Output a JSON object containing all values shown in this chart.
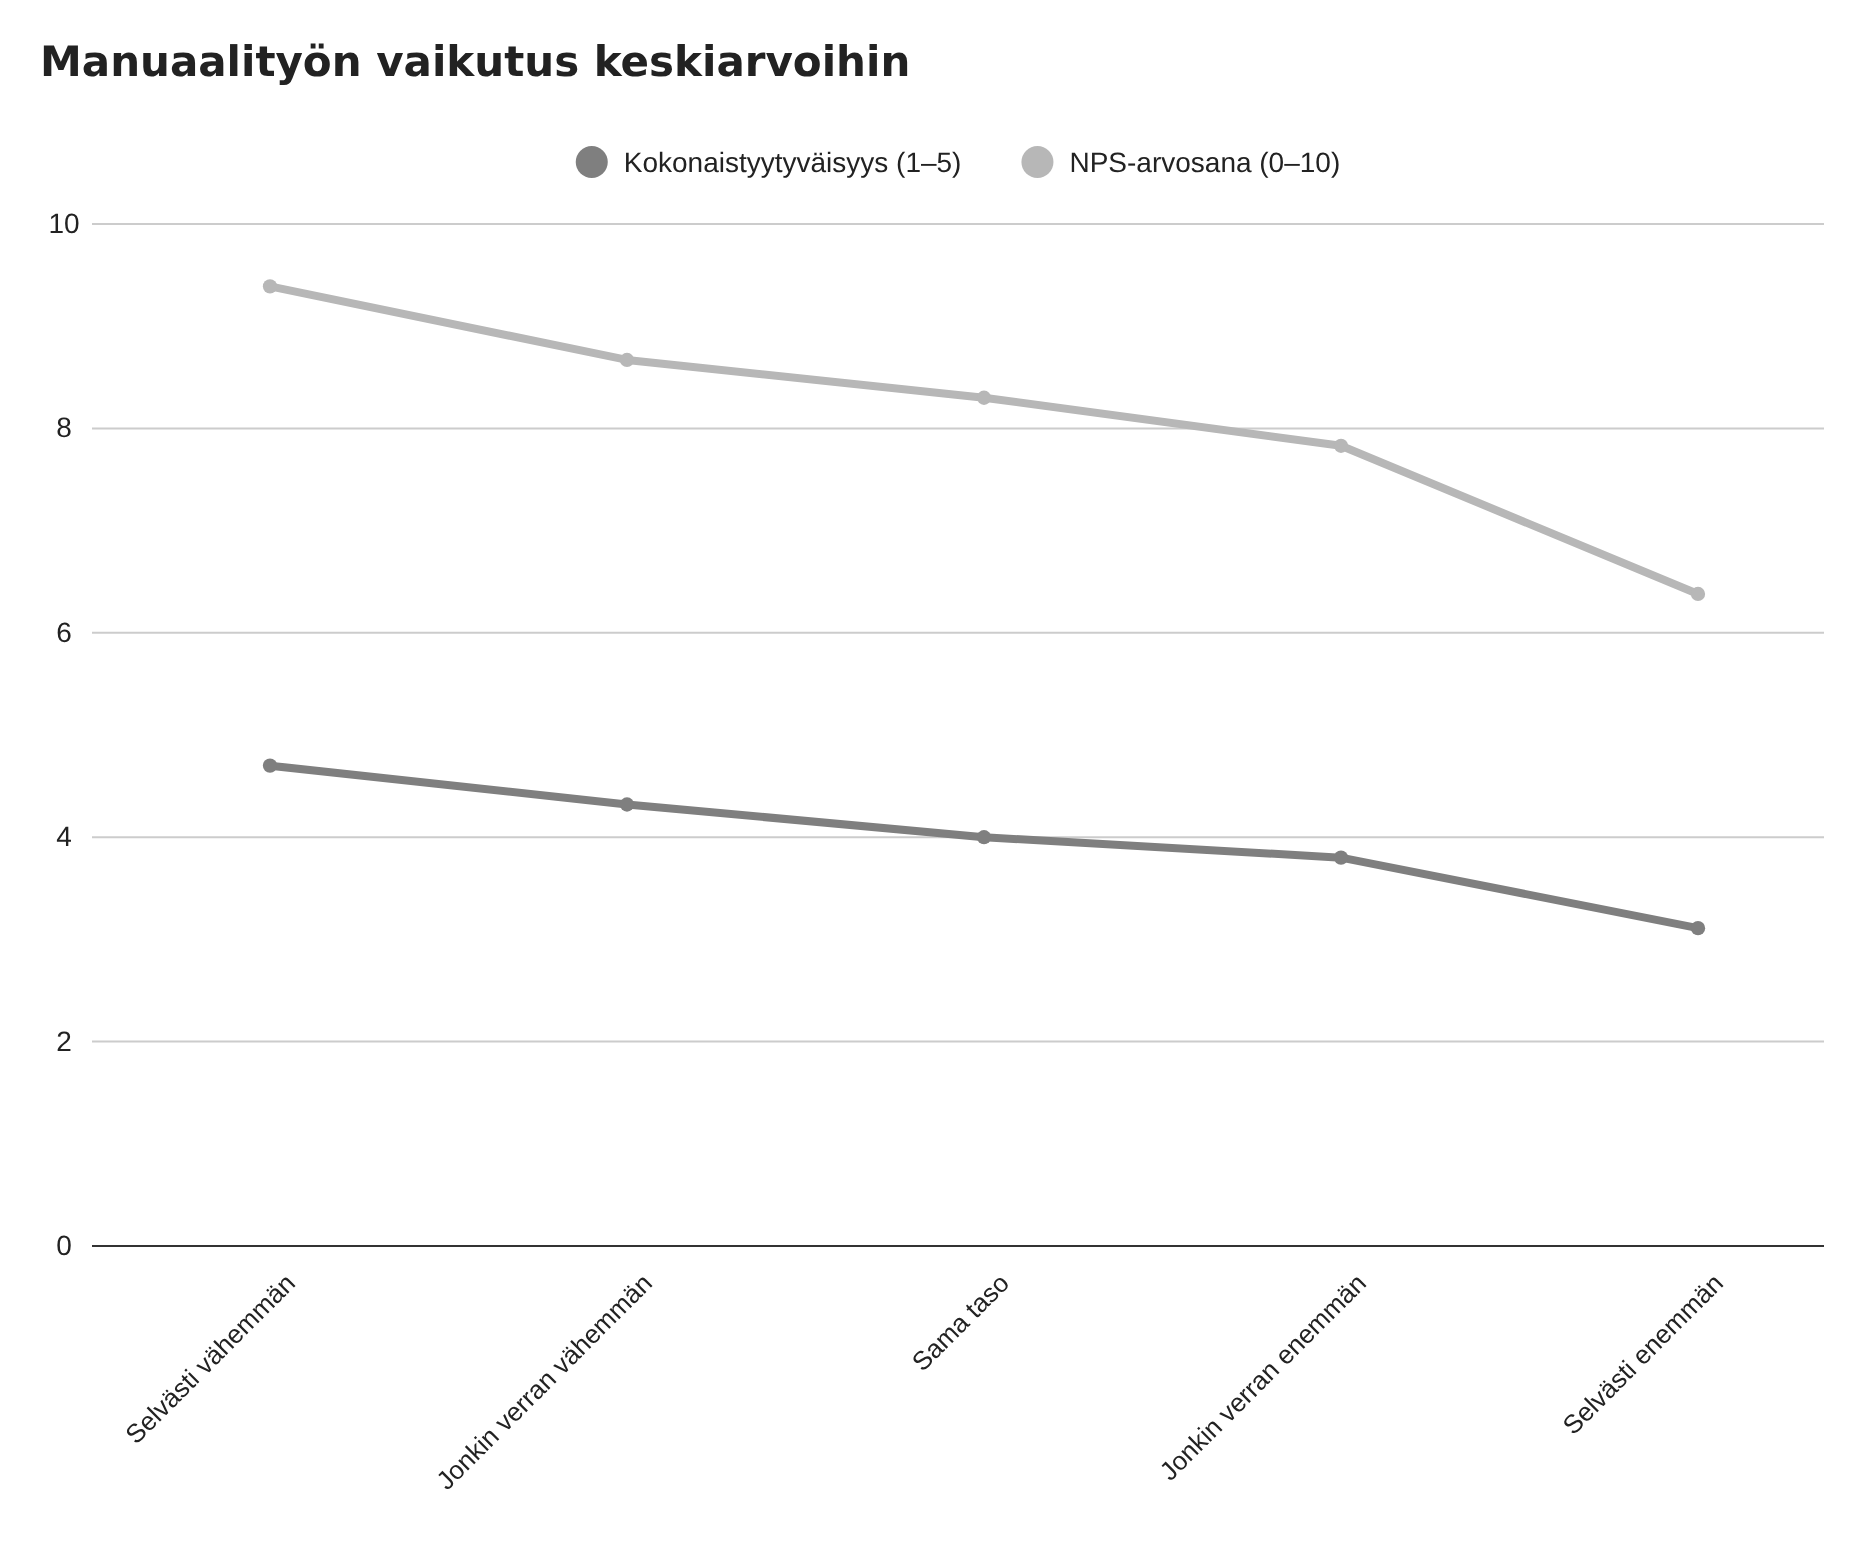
{
  "chart_data": {
    "type": "line",
    "title": "Manuaalityön vaikutus keskiarvoihin",
    "categories": [
      "Selvästi vähemmän",
      "Jonkin verran vähemmän",
      "Sama taso",
      "Jonkin verran enemmän",
      "Selvästi enemmän"
    ],
    "series": [
      {
        "name": "Kokonaistyytyväisyys (1–5)",
        "color": "#7f7f7f",
        "values": [
          4.7,
          4.32,
          4.0,
          3.8,
          3.11
        ]
      },
      {
        "name": "NPS-arvosana (0–10)",
        "color": "#b7b7b7",
        "values": [
          9.39,
          8.67,
          8.3,
          7.83,
          6.38
        ]
      }
    ],
    "ylim": [
      0,
      10
    ],
    "yticks": [
      0,
      2,
      4,
      6,
      8,
      10
    ],
    "grid": "y",
    "legend": "top",
    "marker": "circle",
    "line_style": "solid"
  }
}
